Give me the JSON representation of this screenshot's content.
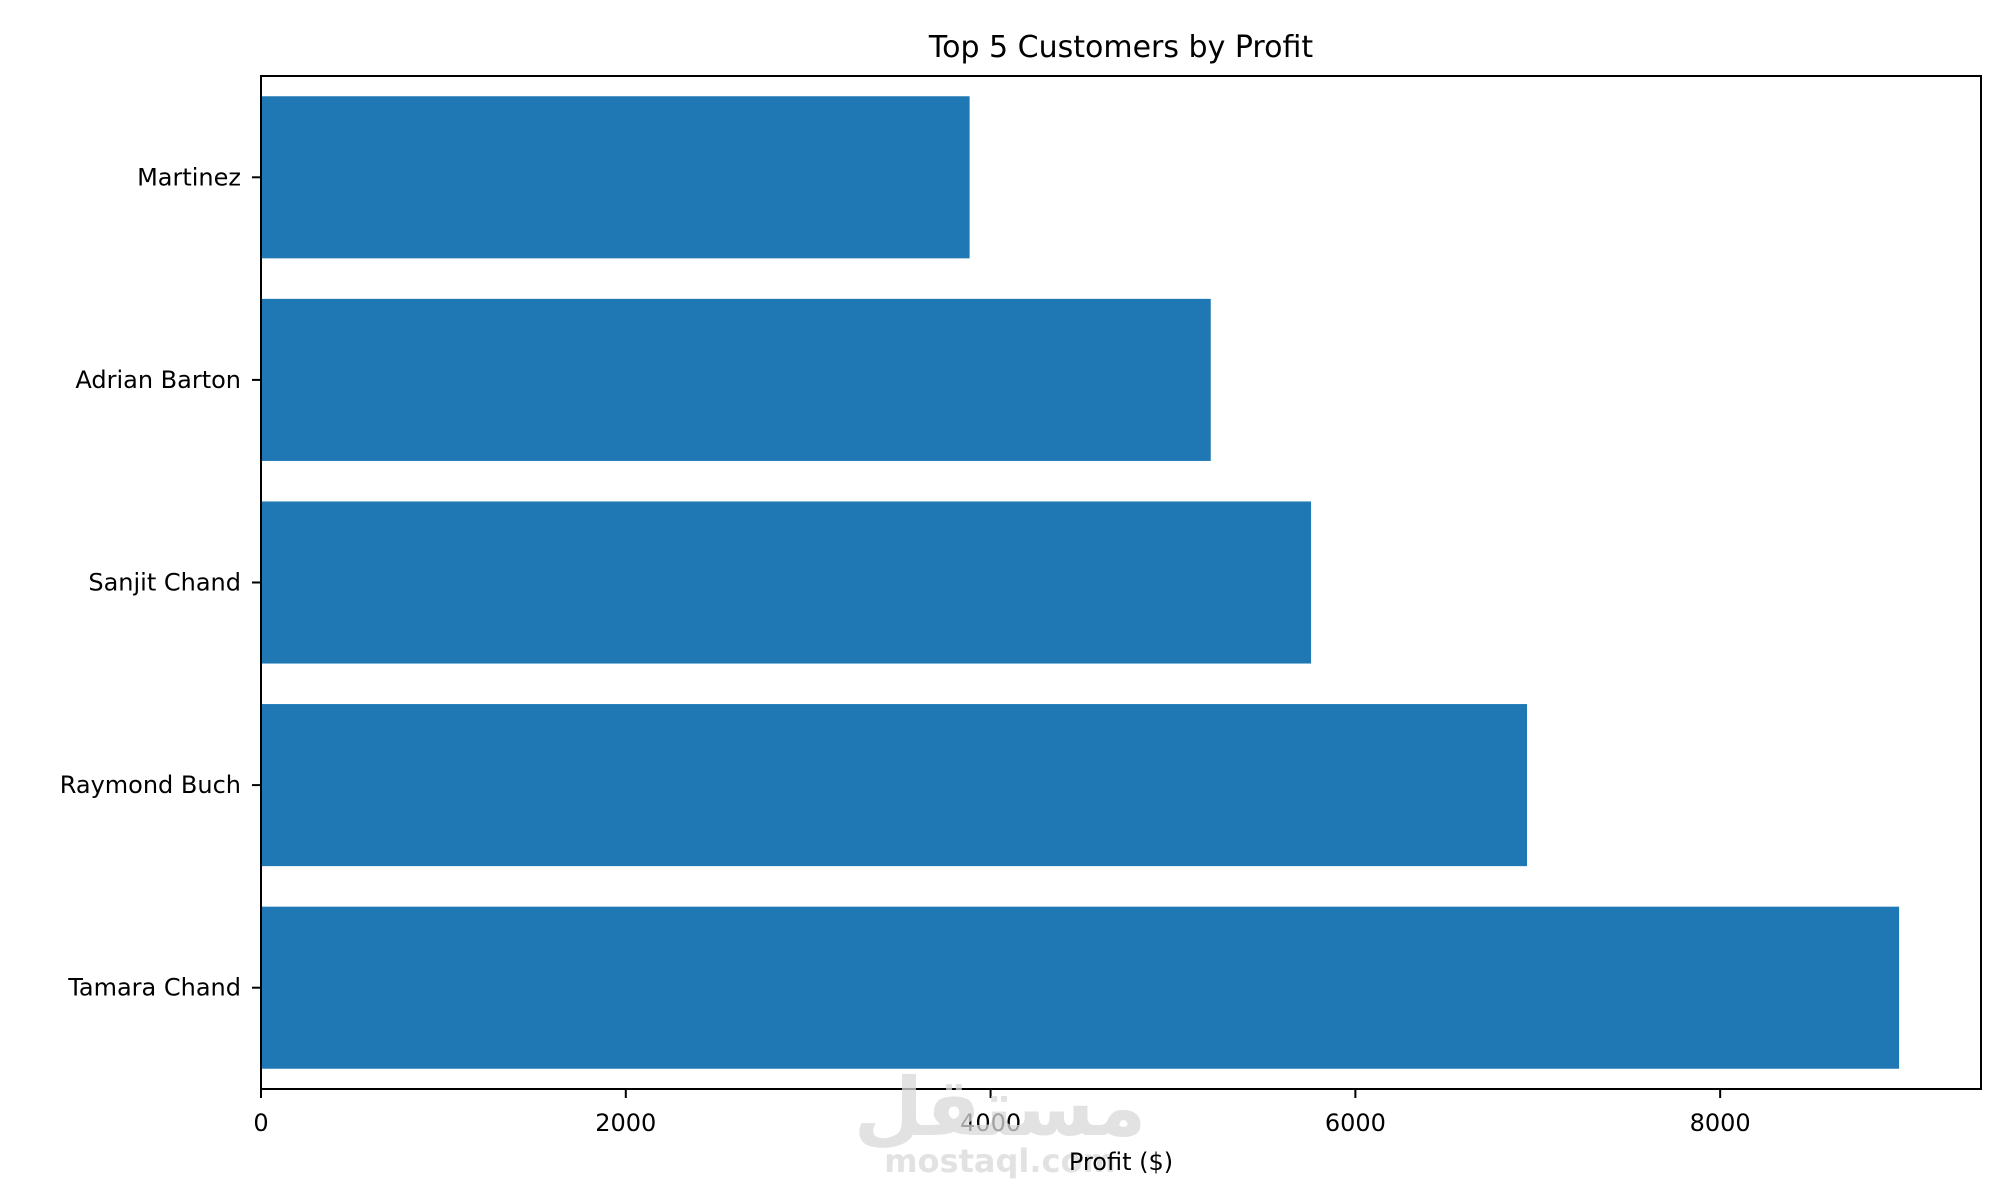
{
  "chart_data": {
    "type": "bar",
    "orientation": "horizontal",
    "title": "Top 5 Customers by Profit",
    "xlabel": "Profit ($)",
    "ylabel": "",
    "categories": [
      "Tamara Chand",
      "Raymond Buch",
      "Sanjit Chand",
      "Adrian Barton",
      "Martinez"
    ],
    "values": [
      8981,
      6941,
      5757,
      5207,
      3885
    ],
    "xlim": [
      0,
      9430
    ],
    "xticks": [
      0,
      2000,
      4000,
      6000,
      8000
    ],
    "xtick_labels": [
      "0",
      "2000",
      "4000",
      "6000",
      "8000"
    ],
    "bar_color": "#1f77b4",
    "grid": false,
    "legend": "none"
  },
  "watermark": {
    "arabic_text": "مستقل",
    "latin_text": "mostaql.com"
  }
}
